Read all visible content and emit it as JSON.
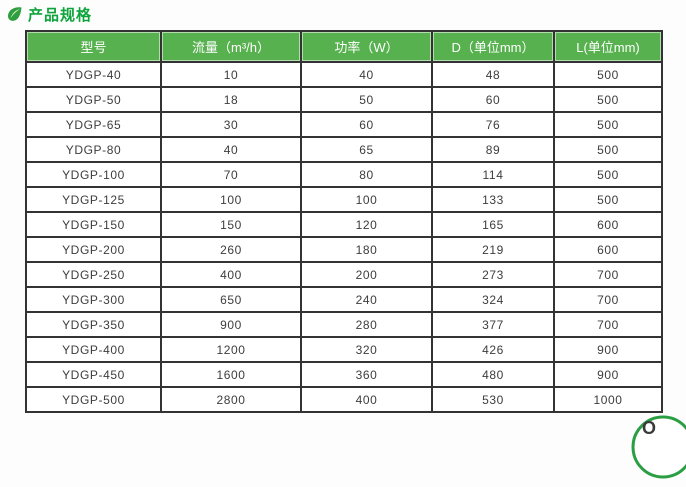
{
  "section": {
    "title": "产品规格"
  },
  "icons": {
    "leaf": "leaf-bullet",
    "stamp_letters": "O"
  },
  "colors": {
    "title_green": "#0ea43c",
    "header_green": "#57b14f",
    "border_dark": "#333333",
    "stamp_green": "#2b9e43"
  },
  "table": {
    "headers": [
      "型号",
      "流量（m³/h）",
      "功率（W）",
      "D（单位mm）",
      "L(单位mm)"
    ],
    "rows": [
      [
        "YDGP-40",
        "10",
        "40",
        "48",
        "500"
      ],
      [
        "YDGP-50",
        "18",
        "50",
        "60",
        "500"
      ],
      [
        "YDGP-65",
        "30",
        "60",
        "76",
        "500"
      ],
      [
        "YDGP-80",
        "40",
        "65",
        "89",
        "500"
      ],
      [
        "YDGP-100",
        "70",
        "80",
        "114",
        "500"
      ],
      [
        "YDGP-125",
        "100",
        "100",
        "133",
        "500"
      ],
      [
        "YDGP-150",
        "150",
        "120",
        "165",
        "600"
      ],
      [
        "YDGP-200",
        "260",
        "180",
        "219",
        "600"
      ],
      [
        "YDGP-250",
        "400",
        "200",
        "273",
        "700"
      ],
      [
        "YDGP-300",
        "650",
        "240",
        "324",
        "700"
      ],
      [
        "YDGP-350",
        "900",
        "280",
        "377",
        "700"
      ],
      [
        "YDGP-400",
        "1200",
        "320",
        "426",
        "900"
      ],
      [
        "YDGP-450",
        "1600",
        "360",
        "480",
        "900"
      ],
      [
        "YDGP-500",
        "2800",
        "400",
        "530",
        "1000"
      ]
    ]
  }
}
